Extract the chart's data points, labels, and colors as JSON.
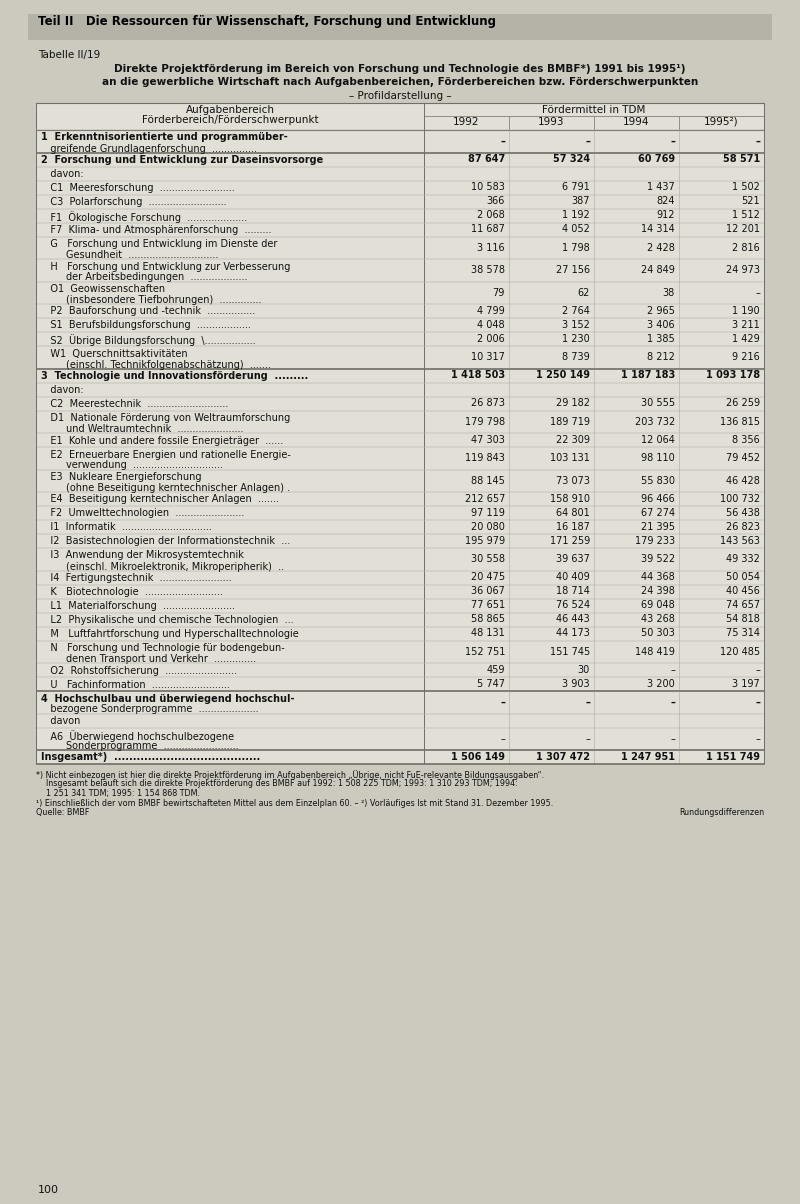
{
  "header_banner": "Teil II   Die Ressourcen für Wissenschaft, Forschung und Entwicklung",
  "table_label": "Tabelle II/19",
  "title_line1": "Direkte Projektförderung im Bereich von Forschung und Technologie des BMBF*) 1991 bis 1995¹)",
  "title_line2": "an die gewerbliche Wirtschaft nach Aufgabenbereichen, Förderbereichen bzw. Förderschwerpunkten",
  "title_line3": "– Profildarstellung –",
  "col_header_left1": "Aufgabenbereich",
  "col_header_left2": "Förderbereich/Förderschwerpunkt",
  "col_header_right": "Fördermittel in TDM",
  "years": [
    "1992",
    "1993",
    "1994",
    "1995²)"
  ],
  "rows": [
    {
      "label1": "1  Erkenntnisorientierte und programmüber-",
      "label2": "   greifende Grundlagenforschung  ...............",
      "bold": true,
      "vals": [
        "–",
        "–",
        "–",
        "–"
      ],
      "section": true,
      "davon": false
    },
    {
      "label1": "2  Forschung und Entwicklung zur Daseinsvorsorge",
      "label2": "",
      "bold": true,
      "vals": [
        "87 647",
        "57 324",
        "60 769",
        "58 571"
      ],
      "section": true,
      "davon": false
    },
    {
      "label1": "   davon:",
      "label2": "",
      "bold": false,
      "vals": [
        "",
        "",
        "",
        ""
      ],
      "section": false,
      "davon": true
    },
    {
      "label1": "   C1  Meeresforschung  .........................",
      "label2": "",
      "bold": false,
      "vals": [
        "10 583",
        "6 791",
        "1 437",
        "1 502"
      ],
      "section": false,
      "davon": false
    },
    {
      "label1": "   C3  Polarforschung  ..........................",
      "label2": "",
      "bold": false,
      "vals": [
        "366",
        "387",
        "824",
        "521"
      ],
      "section": false,
      "davon": false
    },
    {
      "label1": "   F1  Ökologische Forschung  ....................",
      "label2": "",
      "bold": false,
      "vals": [
        "2 068",
        "1 192",
        "912",
        "1 512"
      ],
      "section": false,
      "davon": false
    },
    {
      "label1": "   F7  Klima- und Atmosphärenforschung  .........",
      "label2": "",
      "bold": false,
      "vals": [
        "11 687",
        "4 052",
        "14 314",
        "12 201"
      ],
      "section": false,
      "davon": false
    },
    {
      "label1": "   G   Forschung und Entwicklung im Dienste der",
      "label2": "        Gesundheit  ..............................",
      "bold": false,
      "vals": [
        "3 116",
        "1 798",
        "2 428",
        "2 816"
      ],
      "section": false,
      "davon": false
    },
    {
      "label1": "   H   Forschung und Entwicklung zur Verbesserung",
      "label2": "        der Arbeitsbedingungen  ...................",
      "bold": false,
      "vals": [
        "38 578",
        "27 156",
        "24 849",
        "24 973"
      ],
      "section": false,
      "davon": false
    },
    {
      "label1": "   O1  Geowissenschaften",
      "label2": "        (insbesondere Tiefbohrungen)  ..............",
      "bold": false,
      "vals": [
        "79",
        "62",
        "38",
        "–"
      ],
      "section": false,
      "davon": false
    },
    {
      "label1": "   P2  Bauforschung und -technik  ................",
      "label2": "",
      "bold": false,
      "vals": [
        "4 799",
        "2 764",
        "2 965",
        "1 190"
      ],
      "section": false,
      "davon": false
    },
    {
      "label1": "   S1  Berufsbildungsforschung  ..................",
      "label2": "",
      "bold": false,
      "vals": [
        "4 048",
        "3 152",
        "3 406",
        "3 211"
      ],
      "section": false,
      "davon": false
    },
    {
      "label1": "   S2  Übrige Bildungsforschung  \\.................",
      "label2": "",
      "bold": false,
      "vals": [
        "2 006",
        "1 230",
        "1 385",
        "1 429"
      ],
      "section": false,
      "davon": false
    },
    {
      "label1": "   W1  Querschnittsaktivitäten",
      "label2": "        (einschl. Technikfolgenabschätzung)  .......",
      "bold": false,
      "vals": [
        "10 317",
        "8 739",
        "8 212",
        "9 216"
      ],
      "section": false,
      "davon": false
    },
    {
      "label1": "3  Technologie und Innovationsförderung  .........",
      "label2": "",
      "bold": true,
      "vals": [
        "1 418 503",
        "1 250 149",
        "1 187 183",
        "1 093 178"
      ],
      "section": true,
      "davon": false
    },
    {
      "label1": "   davon:",
      "label2": "",
      "bold": false,
      "vals": [
        "",
        "",
        "",
        ""
      ],
      "section": false,
      "davon": true
    },
    {
      "label1": "   C2  Meerestechnik  ...........................",
      "label2": "",
      "bold": false,
      "vals": [
        "26 873",
        "29 182",
        "30 555",
        "26 259"
      ],
      "section": false,
      "davon": false
    },
    {
      "label1": "   D1  Nationale Förderung von Weltraumforschung",
      "label2": "        und Weltraumtechnik  ......................",
      "bold": false,
      "vals": [
        "179 798",
        "189 719",
        "203 732",
        "136 815"
      ],
      "section": false,
      "davon": false
    },
    {
      "label1": "   E1  Kohle und andere fossile Energieträger  ......",
      "label2": "",
      "bold": false,
      "vals": [
        "47 303",
        "22 309",
        "12 064",
        "8 356"
      ],
      "section": false,
      "davon": false
    },
    {
      "label1": "   E2  Erneuerbare Energien und rationelle Energie-",
      "label2": "        verwendung  ..............................",
      "bold": false,
      "vals": [
        "119 843",
        "103 131",
        "98 110",
        "79 452"
      ],
      "section": false,
      "davon": false
    },
    {
      "label1": "   E3  Nukleare Energieforschung",
      "label2": "        (ohne Beseitigung kerntechnischer Anlagen) .",
      "bold": false,
      "vals": [
        "88 145",
        "73 073",
        "55 830",
        "46 428"
      ],
      "section": false,
      "davon": false
    },
    {
      "label1": "   E4  Beseitigung kerntechnischer Anlagen  .......",
      "label2": "",
      "bold": false,
      "vals": [
        "212 657",
        "158 910",
        "96 466",
        "100 732"
      ],
      "section": false,
      "davon": false
    },
    {
      "label1": "   F2  Umwelttechnologien  .......................",
      "label2": "",
      "bold": false,
      "vals": [
        "97 119",
        "64 801",
        "67 274",
        "56 438"
      ],
      "section": false,
      "davon": false
    },
    {
      "label1": "   I1  Informatik  ..............................",
      "label2": "",
      "bold": false,
      "vals": [
        "20 080",
        "16 187",
        "21 395",
        "26 823"
      ],
      "section": false,
      "davon": false
    },
    {
      "label1": "   I2  Basistechnologien der Informationstechnik  ...",
      "label2": "",
      "bold": false,
      "vals": [
        "195 979",
        "171 259",
        "179 233",
        "143 563"
      ],
      "section": false,
      "davon": false
    },
    {
      "label1": "   I3  Anwendung der Mikrosystemtechnik",
      "label2": "        (einschl. Mikroelektronik, Mikroperipherik)  ..",
      "bold": false,
      "vals": [
        "30 558",
        "39 637",
        "39 522",
        "49 332"
      ],
      "section": false,
      "davon": false
    },
    {
      "label1": "   I4  Fertigungstechnik  ........................",
      "label2": "",
      "bold": false,
      "vals": [
        "20 475",
        "40 409",
        "44 368",
        "50 054"
      ],
      "section": false,
      "davon": false
    },
    {
      "label1": "   K   Biotechnologie  ..........................",
      "label2": "",
      "bold": false,
      "vals": [
        "36 067",
        "18 714",
        "24 398",
        "40 456"
      ],
      "section": false,
      "davon": false
    },
    {
      "label1": "   L1  Materialforschung  ........................",
      "label2": "",
      "bold": false,
      "vals": [
        "77 651",
        "76 524",
        "69 048",
        "74 657"
      ],
      "section": false,
      "davon": false
    },
    {
      "label1": "   L2  Physikalische und chemische Technologien  ...",
      "label2": "",
      "bold": false,
      "vals": [
        "58 865",
        "46 443",
        "43 268",
        "54 818"
      ],
      "section": false,
      "davon": false
    },
    {
      "label1": "   M   Luftfahrtforschung und Hyperschalltechnologie",
      "label2": "",
      "bold": false,
      "vals": [
        "48 131",
        "44 173",
        "50 303",
        "75 314"
      ],
      "section": false,
      "davon": false
    },
    {
      "label1": "   N   Forschung und Technologie für bodengebun-",
      "label2": "        denen Transport und Verkehr  ..............",
      "bold": false,
      "vals": [
        "152 751",
        "151 745",
        "148 419",
        "120 485"
      ],
      "section": false,
      "davon": false
    },
    {
      "label1": "   O2  Rohstoffsicherung  ........................",
      "label2": "",
      "bold": false,
      "vals": [
        "459",
        "30",
        "–",
        "–"
      ],
      "section": false,
      "davon": false
    },
    {
      "label1": "   U   Fachinformation  ..........................",
      "label2": "",
      "bold": false,
      "vals": [
        "5 747",
        "3 903",
        "3 200",
        "3 197"
      ],
      "section": false,
      "davon": false
    },
    {
      "label1": "4  Hochschulbau und überwiegend hochschul-",
      "label2": "   bezogene Sonderprogramme  ....................",
      "bold": true,
      "vals": [
        "–",
        "–",
        "–",
        "–"
      ],
      "section": true,
      "davon": false
    },
    {
      "label1": "   davon",
      "label2": "",
      "bold": false,
      "vals": [
        "",
        "",
        "",
        ""
      ],
      "section": false,
      "davon": true
    },
    {
      "label1": "   A6  Überwiegend hochschulbezogene",
      "label2": "        Sonderprogramme  .........................",
      "bold": false,
      "vals": [
        "–",
        "–",
        "–",
        "–"
      ],
      "section": false,
      "davon": false
    },
    {
      "label1": "Insgesamt*)  .......................................",
      "label2": "",
      "bold": true,
      "vals": [
        "1 506 149",
        "1 307 472",
        "1 247 951",
        "1 151 749"
      ],
      "section": true,
      "davon": false
    }
  ],
  "footnote1": "*) Nicht einbezogen ist hier die direkte Projektförderung im Aufgabenbereich „Übrige, nicht FuE-relevante Bildungsausgaben“.",
  "footnote2": "    Insgesamt beläuft sich die direkte Projektförderung des BMBF auf 1992: 1 508 225 TDM; 1993: 1 310 293 TDM; 1994:",
  "footnote3": "    1 251 341 TDM; 1995: 1 154 868 TDM.",
  "footnote4": "¹) Einschließlich der vom BMBF bewirtschafteten Mittel aus dem Einzelplan 60. – ²) Vorläufiges Ist mit Stand 31. Dezember 1995.",
  "footnote5_left": "Quelle: BMBF",
  "footnote5_right": "Rundungsdifferenzen",
  "page_number": "100",
  "bg_color": "#ccc9be",
  "table_bg": "#e2dfd6",
  "header_stripe": "#b5b2a8",
  "border_color": "#706e68",
  "text_color": "#111111"
}
